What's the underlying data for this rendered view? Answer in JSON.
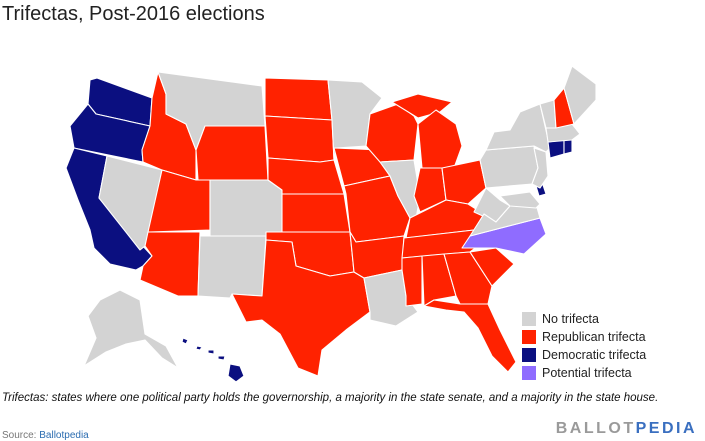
{
  "title": "Trifectas, Post-2016 elections",
  "colors": {
    "none": "#d3d3d3",
    "republican": "#ff2200",
    "democratic": "#0b0f80",
    "potential": "#8f6cff"
  },
  "legend": [
    {
      "key": "none",
      "label": "No trifecta"
    },
    {
      "key": "republican",
      "label": "Republican trifecta"
    },
    {
      "key": "democratic",
      "label": "Democratic trifecta"
    },
    {
      "key": "potential",
      "label": "Potential trifecta"
    }
  ],
  "states": {
    "WA": "democratic",
    "OR": "democratic",
    "CA": "democratic",
    "HI": "democratic",
    "DE": "democratic",
    "CT": "democratic",
    "RI": "democratic",
    "NC": "potential",
    "ID": "republican",
    "UT": "republican",
    "AZ": "republican",
    "WY": "republican",
    "ND": "republican",
    "SD": "republican",
    "NE": "republican",
    "KS": "republican",
    "OK": "republican",
    "TX": "republican",
    "IA": "republican",
    "MO": "republican",
    "AR": "republican",
    "WI": "republican",
    "MI": "republican",
    "IN": "republican",
    "OH": "republican",
    "KY": "republican",
    "TN": "republican",
    "MS": "republican",
    "AL": "republican",
    "GA": "republican",
    "SC": "republican",
    "FL": "republican",
    "NH": "republican",
    "NV": "none",
    "MT": "none",
    "CO": "none",
    "NM": "none",
    "MN": "none",
    "IL": "none",
    "LA": "none",
    "AK": "none",
    "VA": "none",
    "WV": "none",
    "PA": "none",
    "NY": "none",
    "VT": "none",
    "ME": "none",
    "MA": "none",
    "NJ": "none",
    "MD": "none"
  },
  "caption": "Trifectas: states where one political party holds the governorship, a majority in the state senate, and a majority in the state house.",
  "source_prefix": "Source: ",
  "source_link": "Ballotpedia",
  "brand_part1": "BALLOT",
  "brand_part2": "PEDIA"
}
